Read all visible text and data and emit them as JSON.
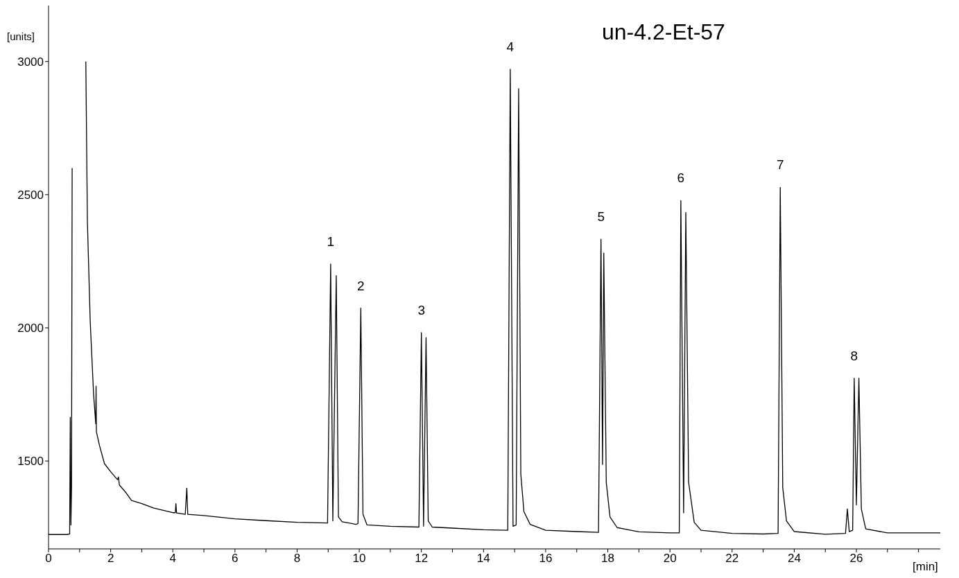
{
  "chart_data": {
    "type": "line",
    "title": "un-4.2-Et-57",
    "xlabel": "[min]",
    "ylabel": "[units]",
    "xlim": [
      0,
      28.7
    ],
    "ylim": [
      1170,
      3210
    ],
    "xticks": [
      0,
      {
        "value": 1,
        "label": null
      },
      2,
      {
        "value": 3,
        "label": null
      },
      4,
      {
        "value": 5,
        "label": null
      },
      6,
      {
        "value": 7,
        "label": null
      },
      8,
      {
        "value": 9,
        "label": null
      },
      10,
      {
        "value": 11,
        "label": null
      },
      12,
      {
        "value": 13,
        "label": null
      },
      14,
      {
        "value": 15,
        "label": null
      },
      16,
      {
        "value": 17,
        "label": null
      },
      18,
      {
        "value": 19,
        "label": null
      },
      20,
      {
        "value": 21,
        "label": null
      },
      22,
      {
        "value": 23,
        "label": null
      },
      24,
      {
        "value": 25,
        "label": null
      },
      26,
      {
        "value": 27,
        "label": null
      },
      {
        "value": 28,
        "label": null
      }
    ],
    "yticks": [
      1500,
      2000,
      2500,
      3000
    ],
    "grid": false,
    "legend": false,
    "marker": "none",
    "line_style": "solid",
    "series": [
      {
        "color": "#000000",
        "x": [
          0,
          0.6,
          0.68,
          0.7,
          0.72,
          0.74,
          0.76,
          0.8,
          1.16,
          1.2,
          1.25,
          1.34,
          1.45,
          1.52,
          1.53,
          1.54,
          1.64,
          1.8,
          2.0,
          2.18,
          2.22,
          2.25,
          2.28,
          2.5,
          2.67,
          3.0,
          3.39,
          4.0,
          4.08,
          4.1,
          4.12,
          4.4,
          4.45,
          4.48,
          5.0,
          6.0,
          7.0,
          8.0,
          8.98,
          9.08,
          9.15,
          9.26,
          9.33,
          9.45,
          9.9,
          9.96,
          10.05,
          10.12,
          10.25,
          11.0,
          11.92,
          12.0,
          12.07,
          12.15,
          12.22,
          12.35,
          13.0,
          14.0,
          14.78,
          14.86,
          14.95,
          15.05,
          15.13,
          15.2,
          15.3,
          15.5,
          16.0,
          17.0,
          17.7,
          17.78,
          17.83,
          17.87,
          17.95,
          18.07,
          18.3,
          19.0,
          20.0,
          20.3,
          20.35,
          20.44,
          20.51,
          20.6,
          20.78,
          21.0,
          22.0,
          23.0,
          23.48,
          23.55,
          23.63,
          23.75,
          24.0,
          25.0,
          25.65,
          25.71,
          25.77,
          25.88,
          25.93,
          26.0,
          26.08,
          26.16,
          26.3,
          27.0,
          28.0,
          28.7
        ],
        "values": [
          1224,
          1224,
          1226,
          1664,
          1260,
          1400,
          2600,
          null,
          null,
          3000,
          2402,
          2028,
          1750,
          1640,
          1781,
          1610,
          1558,
          1490,
          1460,
          1435,
          1430,
          1440,
          1410,
          1380,
          1352,
          1340,
          1323,
          1306,
          1306,
          1340,
          1305,
          1300,
          1398,
          1300,
          1295,
          1283,
          1276,
          1270,
          1267,
          2240,
          1275,
          2196,
          1290,
          1272,
          1262,
          1265,
          2074,
          1300,
          1260,
          1255,
          1252,
          1982,
          1255,
          1963,
          1275,
          1252,
          1248,
          1242,
          1240,
          2971,
          1255,
          1260,
          2898,
          1450,
          1310,
          1262,
          1240,
          1235,
          1232,
          2333,
          1487,
          2281,
          1420,
          1290,
          1250,
          1234,
          1230,
          1230,
          2478,
          1305,
          2433,
          1420,
          1270,
          1240,
          1228,
          1226,
          1228,
          2527,
          1400,
          1275,
          1235,
          1225,
          1228,
          1320,
          1235,
          1240,
          1811,
          1335,
          1811,
          1320,
          1245,
          1230,
          1230,
          1230
        ]
      }
    ],
    "annotations": [
      {
        "text": "1",
        "x": 9.08,
        "y": 2240
      },
      {
        "text": "2",
        "x": 10.05,
        "y": 2074
      },
      {
        "text": "3",
        "x": 12.0,
        "y": 1982
      },
      {
        "text": "4",
        "x": 14.86,
        "y": 2971
      },
      {
        "text": "5",
        "x": 17.78,
        "y": 2333
      },
      {
        "text": "6",
        "x": 20.35,
        "y": 2478
      },
      {
        "text": "7",
        "x": 23.55,
        "y": 2527
      },
      {
        "text": "8",
        "x": 25.93,
        "y": 1811
      }
    ]
  }
}
